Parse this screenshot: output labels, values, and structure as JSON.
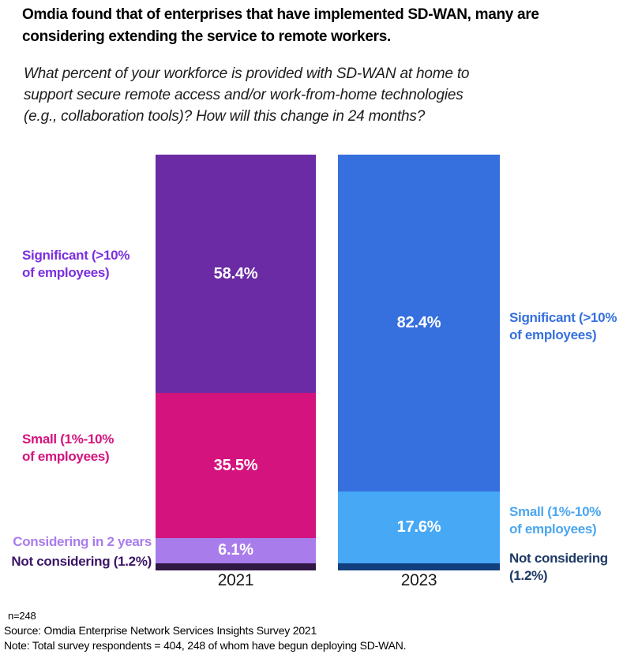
{
  "page": {
    "background": "#ffffff"
  },
  "header": {
    "title": "Omdia found that of enterprises that have implemented SD-WAN, many are\nconsidering extending the service to remote workers.",
    "question": "What percent of your workforce is provided with SD-WAN at home to\nsupport secure remote access and/or work-from-home technologies\n(e.g., collaboration tools)? How will this change in 24 months?"
  },
  "chart_data": {
    "type": "bar",
    "subtype": "stacked-column",
    "title": "",
    "categories": [
      "2021",
      "2023"
    ],
    "unit": "%",
    "series": [
      {
        "name": "Significant (>10% of employees)",
        "values": [
          58.4,
          82.4
        ],
        "colors": [
          "#6B2BA5",
          "#3670DF"
        ]
      },
      {
        "name": "Small (1%-10% of employees)",
        "values": [
          35.5,
          17.6
        ],
        "colors": [
          "#D4137E",
          "#47A9F5"
        ]
      },
      {
        "name": "Considering in 2 years",
        "values": [
          6.1,
          0
        ],
        "colors": [
          "#A97CEC",
          null
        ]
      },
      {
        "name": "Not considering",
        "values": [
          1.2,
          1.2
        ],
        "colors": [
          "#301945",
          "#123F7E"
        ]
      }
    ],
    "value_labels_shown": [
      "58.4%",
      "35.5%",
      "6.1%",
      "82.4%",
      "17.6%"
    ],
    "legend_position": "side-annotations",
    "grid": false,
    "ylim": [
      0,
      101.2
    ]
  },
  "annotations": {
    "left": [
      {
        "text": "Significant (>10%\nof employees)",
        "color": "#7B2FE0"
      },
      {
        "text": "Small (1%-10%\nof employees)",
        "color": "#D4137E"
      },
      {
        "text": "Considering in 2 years",
        "color": "#A97CEC"
      },
      {
        "text": "Not considering (1.2%)",
        "color": "#3B1566"
      }
    ],
    "right": [
      {
        "text": "Significant (>10%\nof employees)",
        "color": "#3670DF"
      },
      {
        "text": "Small (1%-10%\nof employees)",
        "color": "#4BA6F0"
      },
      {
        "text": "Not considering\n(1.2%)",
        "color": "#1E3A66"
      }
    ]
  },
  "footer": {
    "sample": "n=248",
    "source": "Source: Omdia Enterprise Network Services Insights Survey 2021",
    "note": "Note: Total survey respondents = 404, 248 of whom have begun deploying SD-WAN."
  }
}
